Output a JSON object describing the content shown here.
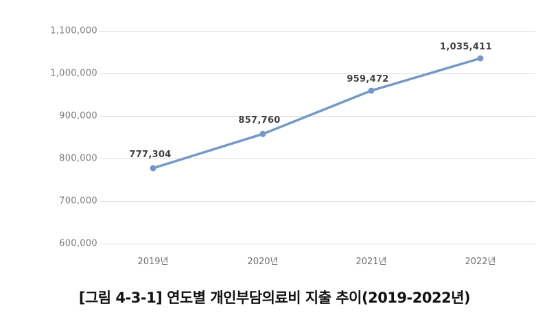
{
  "chart_data": {
    "type": "line",
    "title": "",
    "caption": "[그림 4-3-1] 연도별 개인부담의료비 지출 추이(2019-2022년)",
    "xlabel": "",
    "ylabel": "",
    "categories": [
      "2019년",
      "2020년",
      "2021년",
      "2022년"
    ],
    "series": [
      {
        "name": "개인부담의료비",
        "values": [
          777304,
          857760,
          959472,
          1035411
        ],
        "color": "#7498c8"
      }
    ],
    "data_labels": [
      "777,304",
      "857,760",
      "959,472",
      "1,035,411"
    ],
    "y_ticks": [
      "1,100,000",
      "1,000,000",
      "900,000",
      "800,000",
      "700,000",
      "600,000"
    ],
    "ylim": [
      600000,
      1100000
    ],
    "grid": true,
    "legend": "none"
  }
}
